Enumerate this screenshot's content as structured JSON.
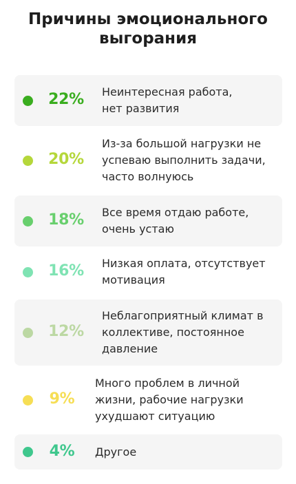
{
  "title_lines": [
    "Причины эмоционального",
    "выгорания"
  ],
  "colors": {
    "row_bg": "#f5f5f5",
    "text": "#2a2a2a"
  },
  "chart_data": {
    "type": "table",
    "title": "Причины эмоционального выгорания",
    "unit": "%",
    "items": [
      {
        "value": 22,
        "label": "22%",
        "text_lines": [
          "Неинтересная работа,",
          "нет развития"
        ],
        "color": "#3aad1f",
        "shaded": true
      },
      {
        "value": 20,
        "label": "20%",
        "text_lines": [
          "Из-за большой нагрузки не",
          "успеваю выполнить задачи,",
          "часто волнуюсь"
        ],
        "color": "#b5d73b",
        "shaded": false
      },
      {
        "value": 18,
        "label": "18%",
        "text_lines": [
          "Все время отдаю работе,",
          "очень устаю"
        ],
        "color": "#68cf6d",
        "shaded": true
      },
      {
        "value": 16,
        "label": "16%",
        "text_lines": [
          "Низкая оплата, отсутствует",
          "мотивация"
        ],
        "color": "#7fe3b3",
        "shaded": false
      },
      {
        "value": 12,
        "label": "12%",
        "text_lines": [
          "Неблагоприятный климат в",
          "коллективе, постоянное",
          "давление"
        ],
        "color": "#bcd8a3",
        "shaded": true
      },
      {
        "value": 9,
        "label": "9%",
        "text_lines": [
          "Много проблем в личной",
          "жизни, рабочие нагрузки",
          "ухудшают ситуацию"
        ],
        "color": "#f6de55",
        "shaded": false
      },
      {
        "value": 4,
        "label": "4%",
        "text_lines": [
          "Другое"
        ],
        "color": "#3fc78d",
        "shaded": true
      }
    ]
  }
}
